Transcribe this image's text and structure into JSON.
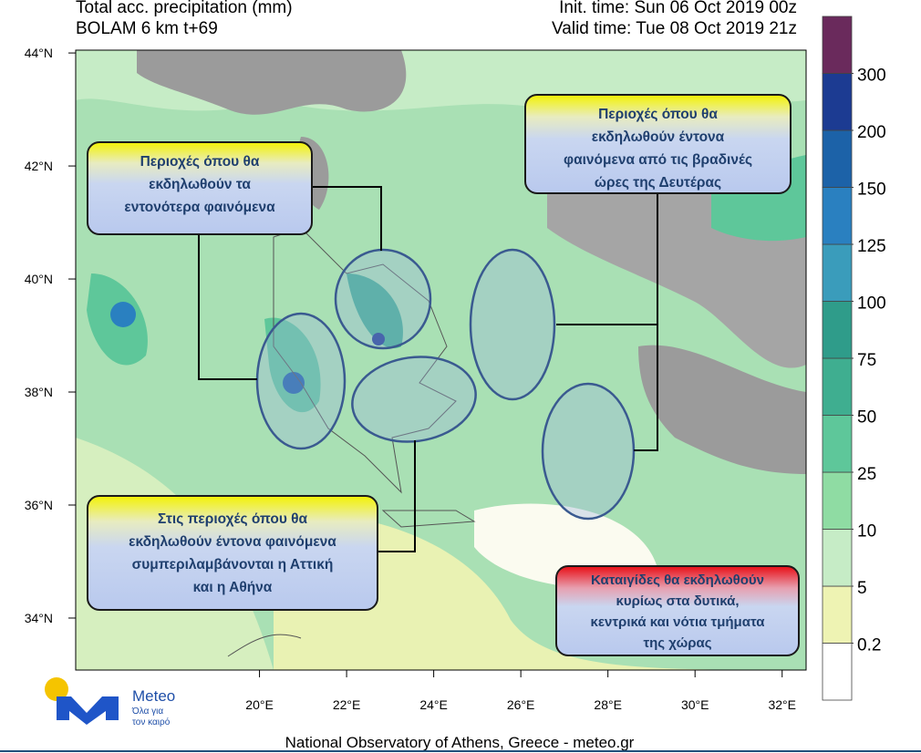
{
  "header": {
    "title": "Total acc. precipitation (mm)",
    "model": "BOLAM 6 km t+69",
    "init_time": "Init. time: Sun 06 Oct 2019 00z",
    "valid_time": "Valid time: Tue 08 Oct 2019 21z"
  },
  "chart_data": {
    "type": "map",
    "xlim": [
      15.78,
      32.55
    ],
    "ylim": [
      33.08,
      44.05
    ],
    "xticks": [
      {
        "value": 20,
        "label": "20°E"
      },
      {
        "value": 22,
        "label": "22°E"
      },
      {
        "value": 24,
        "label": "24°E"
      },
      {
        "value": 26,
        "label": "26°E"
      },
      {
        "value": 28,
        "label": "28°E"
      },
      {
        "value": 30,
        "label": "30°E"
      },
      {
        "value": 32,
        "label": "32°E"
      }
    ],
    "yticks": [
      {
        "value": 34,
        "label": "34°N"
      },
      {
        "value": 36,
        "label": "36°N"
      },
      {
        "value": 38,
        "label": "38°N"
      },
      {
        "value": 40,
        "label": "40°N"
      },
      {
        "value": 42,
        "label": "42°N"
      },
      {
        "value": 44,
        "label": "44°N"
      }
    ],
    "colorbar": {
      "levels": [
        0.2,
        5,
        10,
        25,
        50,
        75,
        100,
        125,
        150,
        200,
        300
      ],
      "colors": [
        "#ffffff",
        "#eef3b3",
        "#c6ecc6",
        "#8fdca3",
        "#5ec79a",
        "#3fae90",
        "#2f9c8a",
        "#3a9cbb",
        "#2a80c0",
        "#1c62a8",
        "#1c3b92",
        "#6a2a5c"
      ]
    }
  },
  "annotations": [
    {
      "lines": [
        "Περιοχές όπου θα",
        "εκδηλωθούν τα",
        "εντονότερα φαινόμενα"
      ]
    },
    {
      "lines": [
        "Περιοχές όπου θα",
        "εκδηλωθούν έντονα",
        "φαινόμενα από τις βραδινές",
        "ώρες της Δευτέρας"
      ]
    },
    {
      "lines": [
        "Στις περιοχές όπου θα",
        "εκδηλωθούν έντονα φαινόμενα",
        "συμπεριλαμβάνονται  η Αττική",
        "και η Αθήνα"
      ]
    },
    {
      "lines": [
        "Καταιγίδες θα εκδηλωθούν",
        "κυρίως στα δυτικά,",
        "κεντρικά και νότια τμήματα",
        "της χώρας"
      ]
    }
  ],
  "logo": {
    "name": "Meteo",
    "slogan_1": "Όλα για",
    "slogan_2": "τον καιρό"
  },
  "footer": "National Observatory of Athens, Greece - meteo.gr"
}
